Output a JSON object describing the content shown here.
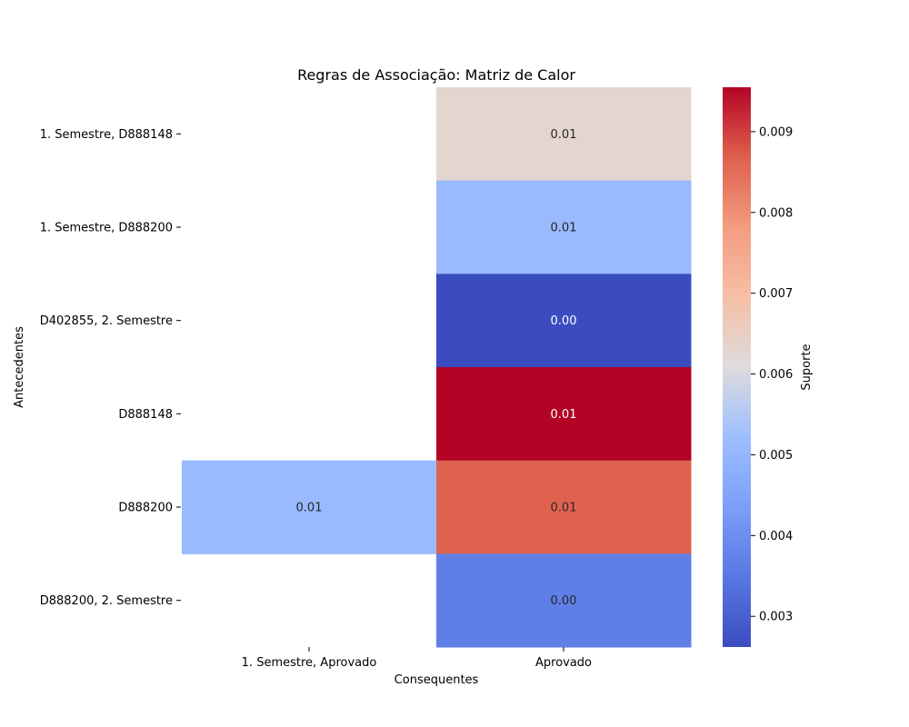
{
  "chart_data": {
    "type": "heatmap",
    "title": "Regras de Associação: Matriz de Calor",
    "xlabel": "Consequentes",
    "ylabel": "Antecedentes",
    "x_categories": [
      "1. Semestre, Aprovado",
      "Aprovado"
    ],
    "y_categories": [
      "1. Semestre, D888148",
      "1. Semestre, D888200",
      "D402855, 2. Semestre",
      "D888148",
      "D888200",
      "D888200, 2. Semestre"
    ],
    "values": [
      [
        null,
        0.0063
      ],
      [
        null,
        0.0051
      ],
      [
        null,
        0.00262
      ],
      [
        null,
        0.00955
      ],
      [
        0.0051,
        0.00865
      ],
      [
        null,
        0.00365
      ]
    ],
    "annotations": [
      [
        null,
        "0.01"
      ],
      [
        null,
        "0.01"
      ],
      [
        null,
        "0.00"
      ],
      [
        null,
        "0.01"
      ],
      [
        "0.01",
        "0.01"
      ],
      [
        null,
        "0.00"
      ]
    ],
    "colormap": "coolwarm",
    "vmin": 0.00262,
    "vmax": 0.00955,
    "colorbar": {
      "label": "Suporte",
      "ticks": [
        0.003,
        0.004,
        0.005,
        0.006,
        0.007,
        0.008,
        0.009
      ],
      "tick_labels": [
        "0.003",
        "0.004",
        "0.005",
        "0.006",
        "0.007",
        "0.008",
        "0.009"
      ]
    }
  }
}
